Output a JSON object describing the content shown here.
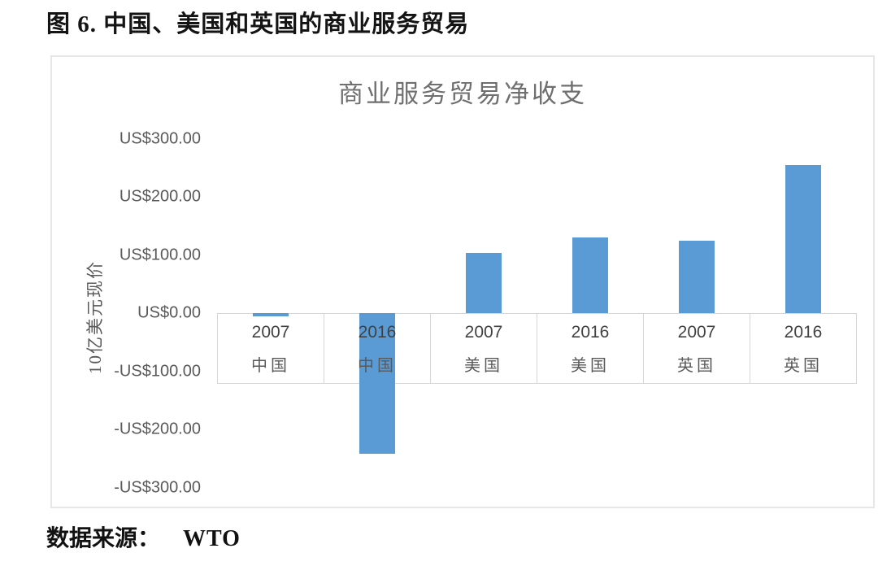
{
  "page": {
    "figure_title": "图 6. 中国、美国和英国的商业服务贸易",
    "source_label": "数据来源：",
    "source_value": "WTO"
  },
  "chart_data": {
    "type": "bar",
    "title": "商业服务贸易净收支",
    "ylabel": "10亿美元现价",
    "categories": [
      {
        "year": "2007",
        "country": "中国"
      },
      {
        "year": "2016",
        "country": "中国"
      },
      {
        "year": "2007",
        "country": "美国"
      },
      {
        "year": "2016",
        "country": "美国"
      },
      {
        "year": "2007",
        "country": "英国"
      },
      {
        "year": "2016",
        "country": "英国"
      }
    ],
    "values": [
      -5,
      -242,
      104,
      130,
      124,
      255
    ],
    "y_ticks": [
      {
        "label": "US$300.00",
        "value": 300
      },
      {
        "label": "US$200.00",
        "value": 200
      },
      {
        "label": "US$100.00",
        "value": 100
      },
      {
        "label": "US$0.00",
        "value": 0
      },
      {
        "label": "-US$100.00",
        "value": -100
      },
      {
        "label": "-US$200.00",
        "value": -200
      },
      {
        "label": "-US$300.00",
        "value": -300
      }
    ],
    "ylim": [
      -300,
      300
    ],
    "grid": "off",
    "legend": "none",
    "bar_color": "#5B9BD5",
    "text_color": "#595959",
    "title_color": "#6F6F6F",
    "border_color": "#D6D6D6"
  }
}
